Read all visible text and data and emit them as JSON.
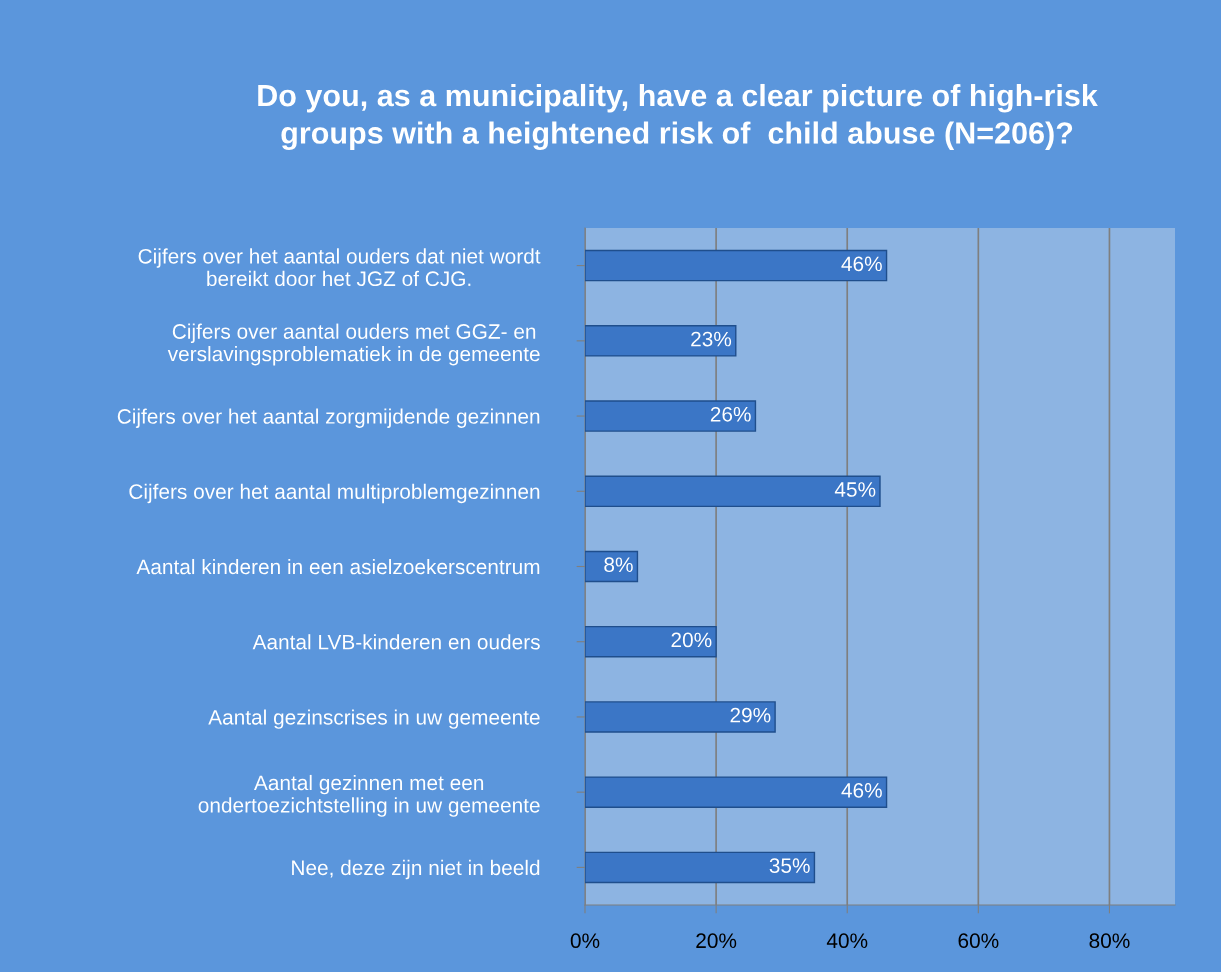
{
  "chart_data": {
    "type": "bar",
    "orientation": "horizontal",
    "title": "Do you, as a municipality, have a clear picture of high-risk\ngroups with a heightened risk of  child abuse (N=206)?",
    "categories": [
      "Cijfers over het aantal ouders dat niet wordt\nbereikt door het JGZ of CJG.",
      "Cijfers over aantal ouders met GGZ- en\nverslavingsproblematiek in de gemeente",
      "Cijfers over het aantal zorgmijdende gezinnen",
      "Cijfers over het aantal multiproblemgezinnen",
      "Aantal kinderen in een asielzoekerscentrum",
      "Aantal LVB-kinderen en ouders",
      "Aantal gezinscrises in uw gemeente",
      "Aantal gezinnen met een\nondertoezichtstelling in uw gemeente",
      "Nee, deze zijn niet in beeld"
    ],
    "values": [
      46,
      23,
      26,
      45,
      8,
      20,
      29,
      46,
      35
    ],
    "value_labels": [
      "46%",
      "23%",
      "26%",
      "45%",
      "8%",
      "20%",
      "29%",
      "46%",
      "35%"
    ],
    "color": "#3b76c6",
    "xlim": [
      0,
      90
    ],
    "xticks": [
      {
        "value": 0,
        "label": "0%"
      },
      {
        "value": 20,
        "label": "20%"
      },
      {
        "value": 40,
        "label": "40%"
      },
      {
        "value": 60,
        "label": "60%"
      },
      {
        "value": 80,
        "label": "80%"
      }
    ],
    "grid": "x"
  }
}
